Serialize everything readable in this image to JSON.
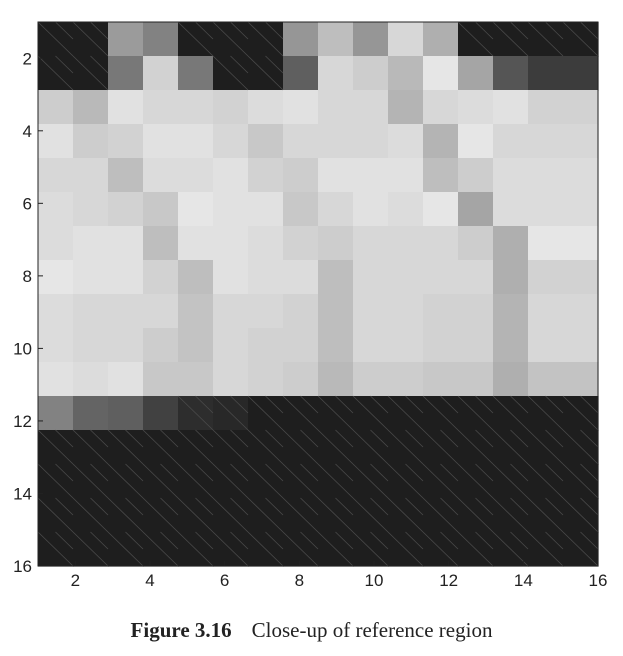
{
  "chart_data": {
    "type": "heatmap",
    "title": "",
    "xlabel": "",
    "ylabel": "",
    "x_ticks": [
      "2",
      "4",
      "6",
      "8",
      "10",
      "12",
      "14",
      "16"
    ],
    "y_ticks": [
      "2",
      "4",
      "6",
      "8",
      "10",
      "12",
      "14",
      "16"
    ],
    "xlim": [
      1,
      16
    ],
    "ylim": [
      1,
      16
    ],
    "y_direction": "top-to-bottom",
    "colormap": "grayscale",
    "gray_values": [
      [
        30,
        30,
        155,
        130,
        30,
        30,
        30,
        150,
        190,
        150,
        215,
        175,
        30,
        30,
        30,
        30
      ],
      [
        30,
        30,
        120,
        210,
        120,
        30,
        30,
        95,
        215,
        205,
        185,
        230,
        165,
        85,
        60,
        60
      ],
      [
        205,
        185,
        225,
        215,
        215,
        210,
        220,
        225,
        215,
        215,
        180,
        215,
        220,
        225,
        210,
        210
      ],
      [
        225,
        205,
        210,
        225,
        225,
        215,
        200,
        215,
        215,
        215,
        220,
        180,
        230,
        215,
        215,
        215
      ],
      [
        215,
        215,
        190,
        220,
        220,
        225,
        210,
        205,
        225,
        225,
        225,
        190,
        205,
        220,
        220,
        220
      ],
      [
        220,
        215,
        210,
        200,
        230,
        225,
        225,
        200,
        215,
        225,
        220,
        230,
        165,
        220,
        220,
        220
      ],
      [
        220,
        225,
        225,
        190,
        225,
        225,
        220,
        210,
        205,
        215,
        215,
        215,
        205,
        175,
        230,
        230
      ],
      [
        230,
        225,
        225,
        210,
        190,
        225,
        220,
        220,
        190,
        215,
        215,
        215,
        215,
        175,
        210,
        210
      ],
      [
        220,
        215,
        215,
        215,
        195,
        215,
        215,
        210,
        190,
        215,
        215,
        210,
        210,
        180,
        215,
        215
      ],
      [
        220,
        215,
        215,
        205,
        195,
        215,
        210,
        210,
        190,
        215,
        215,
        210,
        210,
        180,
        215,
        215
      ],
      [
        225,
        220,
        225,
        200,
        200,
        215,
        210,
        205,
        185,
        205,
        205,
        200,
        200,
        175,
        195,
        195
      ],
      [
        130,
        100,
        95,
        65,
        45,
        40,
        30,
        30,
        30,
        30,
        30,
        30,
        30,
        30,
        30,
        30
      ],
      [
        30,
        30,
        30,
        30,
        30,
        30,
        30,
        30,
        30,
        30,
        30,
        30,
        30,
        30,
        30,
        30
      ],
      [
        30,
        30,
        30,
        30,
        30,
        30,
        30,
        30,
        30,
        30,
        30,
        30,
        30,
        30,
        30,
        30
      ],
      [
        30,
        30,
        30,
        30,
        30,
        30,
        30,
        30,
        30,
        30,
        30,
        30,
        30,
        30,
        30,
        30
      ],
      [
        30,
        30,
        30,
        30,
        30,
        30,
        30,
        30,
        30,
        30,
        30,
        30,
        30,
        30,
        30,
        30
      ]
    ],
    "grid": false
  },
  "caption": {
    "figure_number": "Figure 3.16",
    "text": "Close-up of reference region"
  }
}
